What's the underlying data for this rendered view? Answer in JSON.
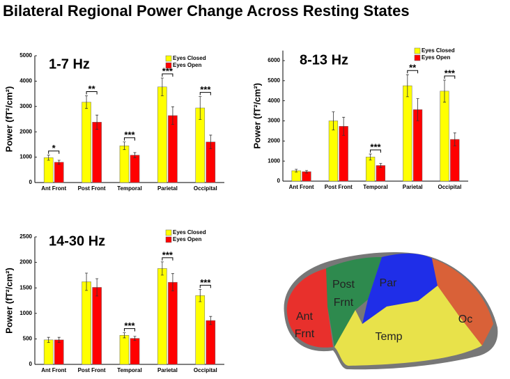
{
  "title": "Bilateral Regional Power Change Across Resting States",
  "chart_data": [
    {
      "type": "bar",
      "title": "1-7 Hz",
      "y_label": "Power (fT²/cm²)",
      "categories": [
        "Ant Front",
        "Post Front",
        "Temporal",
        "Parietal",
        "Occipital"
      ],
      "series": [
        {
          "name": "Eyes Closed",
          "color": "#ffff00",
          "values": [
            980,
            3170,
            1450,
            3770,
            2940
          ],
          "errors": [
            100,
            250,
            150,
            350,
            450
          ]
        },
        {
          "name": "Eyes Open",
          "color": "#ff0000",
          "values": [
            800,
            2380,
            1080,
            2640,
            1600
          ],
          "errors": [
            80,
            280,
            100,
            350,
            270
          ]
        }
      ],
      "stars": [
        "*",
        "**",
        "***",
        "***",
        "***"
      ],
      "ylim": [
        0,
        5000
      ],
      "yticks": [
        0,
        1000,
        2000,
        3000,
        4000,
        5000
      ]
    },
    {
      "type": "bar",
      "title": "8-13 Hz",
      "y_label": "Power (fT²/cm²)",
      "categories": [
        "Ant Front",
        "Post Front",
        "Temporal",
        "Parietal",
        "Occipital"
      ],
      "series": [
        {
          "name": "Eyes Closed",
          "color": "#ffff00",
          "values": [
            520,
            3000,
            1200,
            4750,
            4480
          ],
          "errors": [
            70,
            450,
            150,
            550,
            550
          ]
        },
        {
          "name": "Eyes Open",
          "color": "#ff0000",
          "values": [
            470,
            2730,
            780,
            3560,
            2080
          ],
          "errors": [
            60,
            450,
            100,
            550,
            320
          ]
        }
      ],
      "stars": [
        null,
        null,
        "***",
        "**",
        "***"
      ],
      "ylim": [
        0,
        6500
      ],
      "yticks": [
        0,
        1000,
        2000,
        3000,
        4000,
        5000,
        6000
      ]
    },
    {
      "type": "bar",
      "title": "14-30 Hz",
      "y_label": "Power (fT²/cm²)",
      "categories": [
        "Ant Front",
        "Post Front",
        "Temporal",
        "Parietal",
        "Occipital"
      ],
      "series": [
        {
          "name": "Eyes Closed",
          "color": "#ffff00",
          "values": [
            480,
            1620,
            570,
            1880,
            1350
          ],
          "errors": [
            50,
            170,
            50,
            130,
            120
          ]
        },
        {
          "name": "Eyes Open",
          "color": "#ff0000",
          "values": [
            480,
            1510,
            510,
            1610,
            860
          ],
          "errors": [
            50,
            170,
            40,
            170,
            80
          ]
        }
      ],
      "stars": [
        null,
        null,
        "***",
        "***",
        "***"
      ],
      "ylim": [
        0,
        2500
      ],
      "yticks": [
        0,
        500,
        1000,
        1500,
        2000,
        2500
      ]
    }
  ],
  "diagram": {
    "regions": [
      {
        "lines": [
          "Ant",
          "Frnt"
        ]
      },
      {
        "lines": [
          "Post",
          "Frnt"
        ]
      },
      {
        "lines": [
          "Par"
        ]
      },
      {
        "lines": [
          "Temp"
        ]
      },
      {
        "lines": [
          "Oc"
        ]
      }
    ]
  }
}
